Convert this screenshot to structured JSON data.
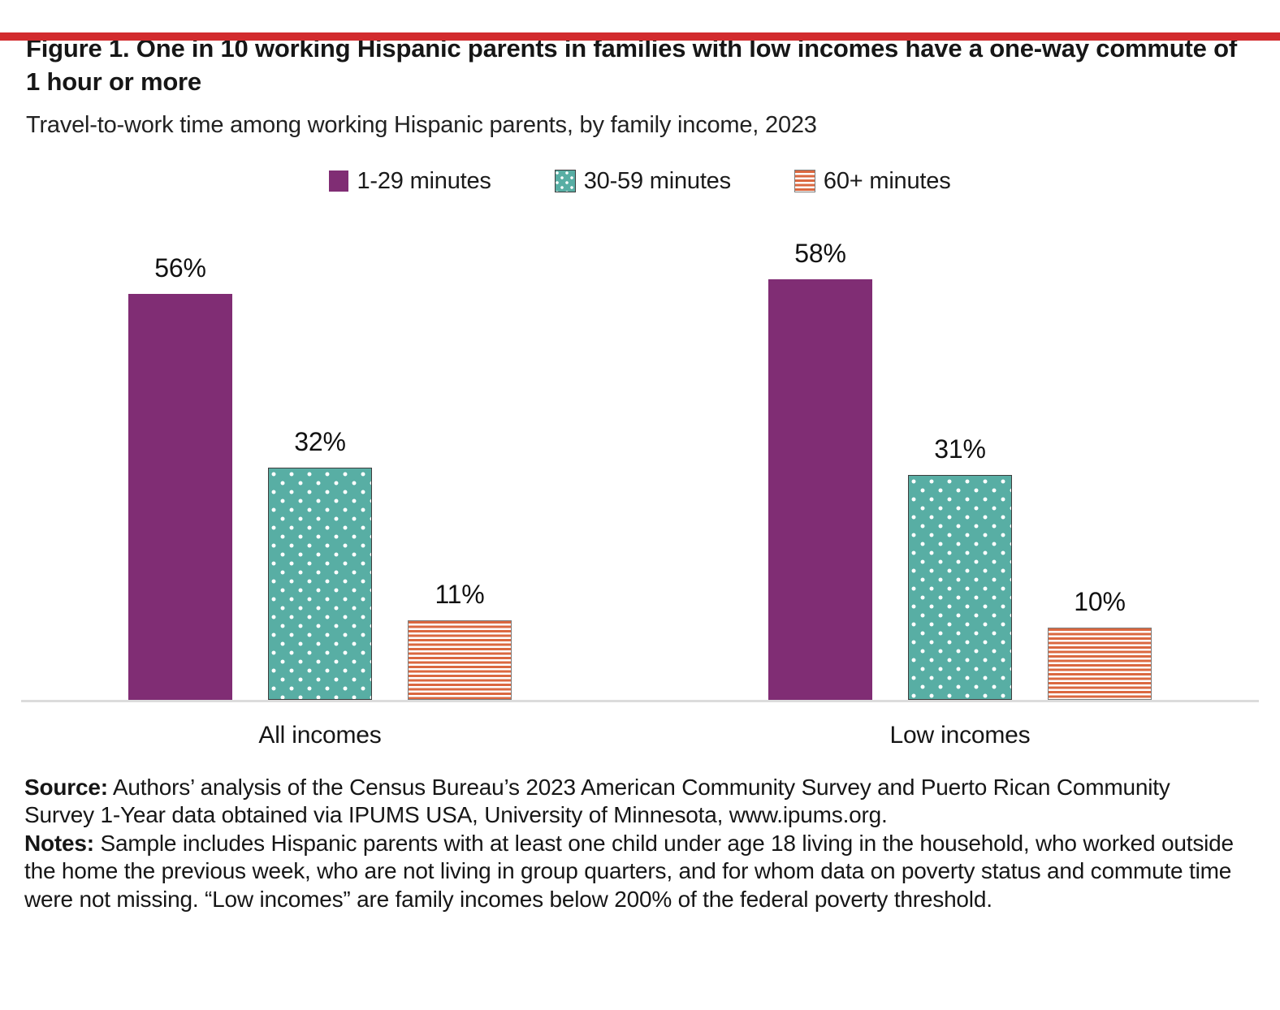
{
  "accent_color": "#d22b2e",
  "title": "Figure 1. One in 10 working Hispanic parents in families with low incomes have a one-way commute of 1 hour or more",
  "subtitle": "Travel-to-work time among working Hispanic parents, by family income, 2023",
  "chart_data": {
    "type": "bar",
    "categories": [
      "All incomes",
      "Low incomes"
    ],
    "series": [
      {
        "name": "1-29 minutes",
        "values": [
          56,
          58
        ],
        "labels": [
          "56%",
          "58%"
        ],
        "color": "#802d74",
        "pattern": "solid"
      },
      {
        "name": "30-59 minutes",
        "values": [
          32,
          31
        ],
        "labels": [
          "32%",
          "31%"
        ],
        "color": "#58aea4",
        "pattern": "dots"
      },
      {
        "name": "60+ minutes",
        "values": [
          11,
          10
        ],
        "labels": [
          "11%",
          "10%"
        ],
        "color": "#db6840",
        "pattern": "hstripes"
      }
    ],
    "value_suffix": "%",
    "ylim": [
      0,
      65
    ],
    "grid": false,
    "legend_position": "top",
    "axis_line_color": "#dcdcdc"
  },
  "footer": {
    "source_label": "Source:",
    "source_text": "Authors’ analysis of the Census Bureau’s 2023 American Community Survey and Puerto Rican Community Survey 1-Year data obtained via IPUMS USA, University of Minnesota, www.ipums.org.",
    "notes_label": "Notes:",
    "notes_text": "Sample includes Hispanic parents with at least one child under age 18 living in the household, who worked outside the home the previous week, who are not living in group quarters, and for whom data on poverty status and commute time were not missing. “Low incomes” are family incomes below 200% of the federal poverty threshold."
  }
}
